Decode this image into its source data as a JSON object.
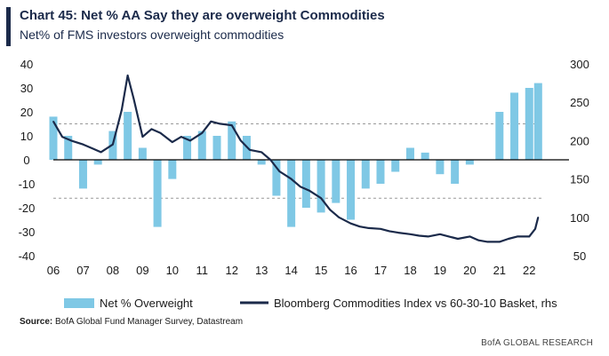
{
  "header": {
    "title": "Chart 45: Net % AA Say they are overweight Commodities",
    "subtitle": "Net% of FMS investors overweight commodities"
  },
  "footer": {
    "source_label": "Source:",
    "source_text": "BofA Global Fund Manager Survey, Datastream",
    "brand": "BofA GLOBAL RESEARCH"
  },
  "colors": {
    "bars": "#7fc8e5",
    "line": "#1b2a4a",
    "zero_line": "#000000",
    "dashed": "#999999"
  },
  "chart_data": {
    "type": "bar+line",
    "x_tick_labels": [
      "06",
      "07",
      "08",
      "09",
      "10",
      "11",
      "12",
      "13",
      "14",
      "15",
      "16",
      "17",
      "18",
      "19",
      "20",
      "21",
      "22"
    ],
    "y_left": {
      "ticks": [
        40,
        30,
        20,
        10,
        0,
        -10,
        -20,
        -30,
        -40
      ],
      "range": [
        -40,
        40
      ]
    },
    "y_right": {
      "ticks": [
        300,
        250,
        200,
        150,
        100,
        50
      ],
      "range": [
        50,
        300
      ]
    },
    "dashed_reference_lines": [
      15,
      -16
    ],
    "legend": {
      "placement": "bottom",
      "entries": [
        "Net % Overweight",
        "Bloomberg Commodities Index vs 60-30-10 Basket, rhs"
      ]
    },
    "bars_series": {
      "name": "Net % Overweight",
      "axis": "left",
      "x": [
        2006.0,
        2006.5,
        2007.0,
        2007.5,
        2008.0,
        2008.5,
        2009.0,
        2009.5,
        2010.0,
        2010.5,
        2011.0,
        2011.5,
        2012.0,
        2012.5,
        2013.0,
        2013.5,
        2014.0,
        2014.5,
        2015.0,
        2015.5,
        2016.0,
        2016.5,
        2017.0,
        2017.5,
        2018.0,
        2018.5,
        2019.0,
        2019.5,
        2020.0,
        2020.5,
        2021.0,
        2021.5,
        2022.0,
        2022.3
      ],
      "values": [
        18,
        10,
        -12,
        -2,
        12,
        20,
        5,
        -28,
        -8,
        10,
        12,
        10,
        16,
        10,
        -2,
        -15,
        -28,
        -20,
        -22,
        -18,
        -25,
        -12,
        -10,
        -5,
        5,
        3,
        -6,
        -10,
        -2,
        0,
        20,
        28,
        30,
        32
      ]
    },
    "line_series": {
      "name": "Bloomberg Commodities Index vs 60-30-10 Basket, rhs",
      "axis": "right",
      "x": [
        2006.0,
        2006.3,
        2006.6,
        2007.0,
        2007.3,
        2007.6,
        2008.0,
        2008.3,
        2008.5,
        2008.7,
        2009.0,
        2009.3,
        2009.6,
        2010.0,
        2010.3,
        2010.6,
        2011.0,
        2011.3,
        2011.6,
        2012.0,
        2012.3,
        2012.6,
        2013.0,
        2013.3,
        2013.6,
        2014.0,
        2014.3,
        2014.6,
        2015.0,
        2015.3,
        2015.6,
        2016.0,
        2016.3,
        2016.6,
        2017.0,
        2017.3,
        2017.6,
        2018.0,
        2018.3,
        2018.6,
        2019.0,
        2019.3,
        2019.6,
        2020.0,
        2020.3,
        2020.6,
        2021.0,
        2021.3,
        2021.6,
        2022.0,
        2022.2,
        2022.3
      ],
      "values": [
        225,
        205,
        200,
        195,
        190,
        185,
        195,
        240,
        285,
        255,
        205,
        215,
        210,
        198,
        205,
        200,
        210,
        225,
        222,
        220,
        200,
        188,
        185,
        175,
        160,
        150,
        140,
        135,
        125,
        110,
        100,
        92,
        88,
        86,
        85,
        82,
        80,
        78,
        76,
        75,
        78,
        75,
        72,
        75,
        70,
        68,
        68,
        72,
        75,
        75,
        85,
        100
      ]
    }
  }
}
